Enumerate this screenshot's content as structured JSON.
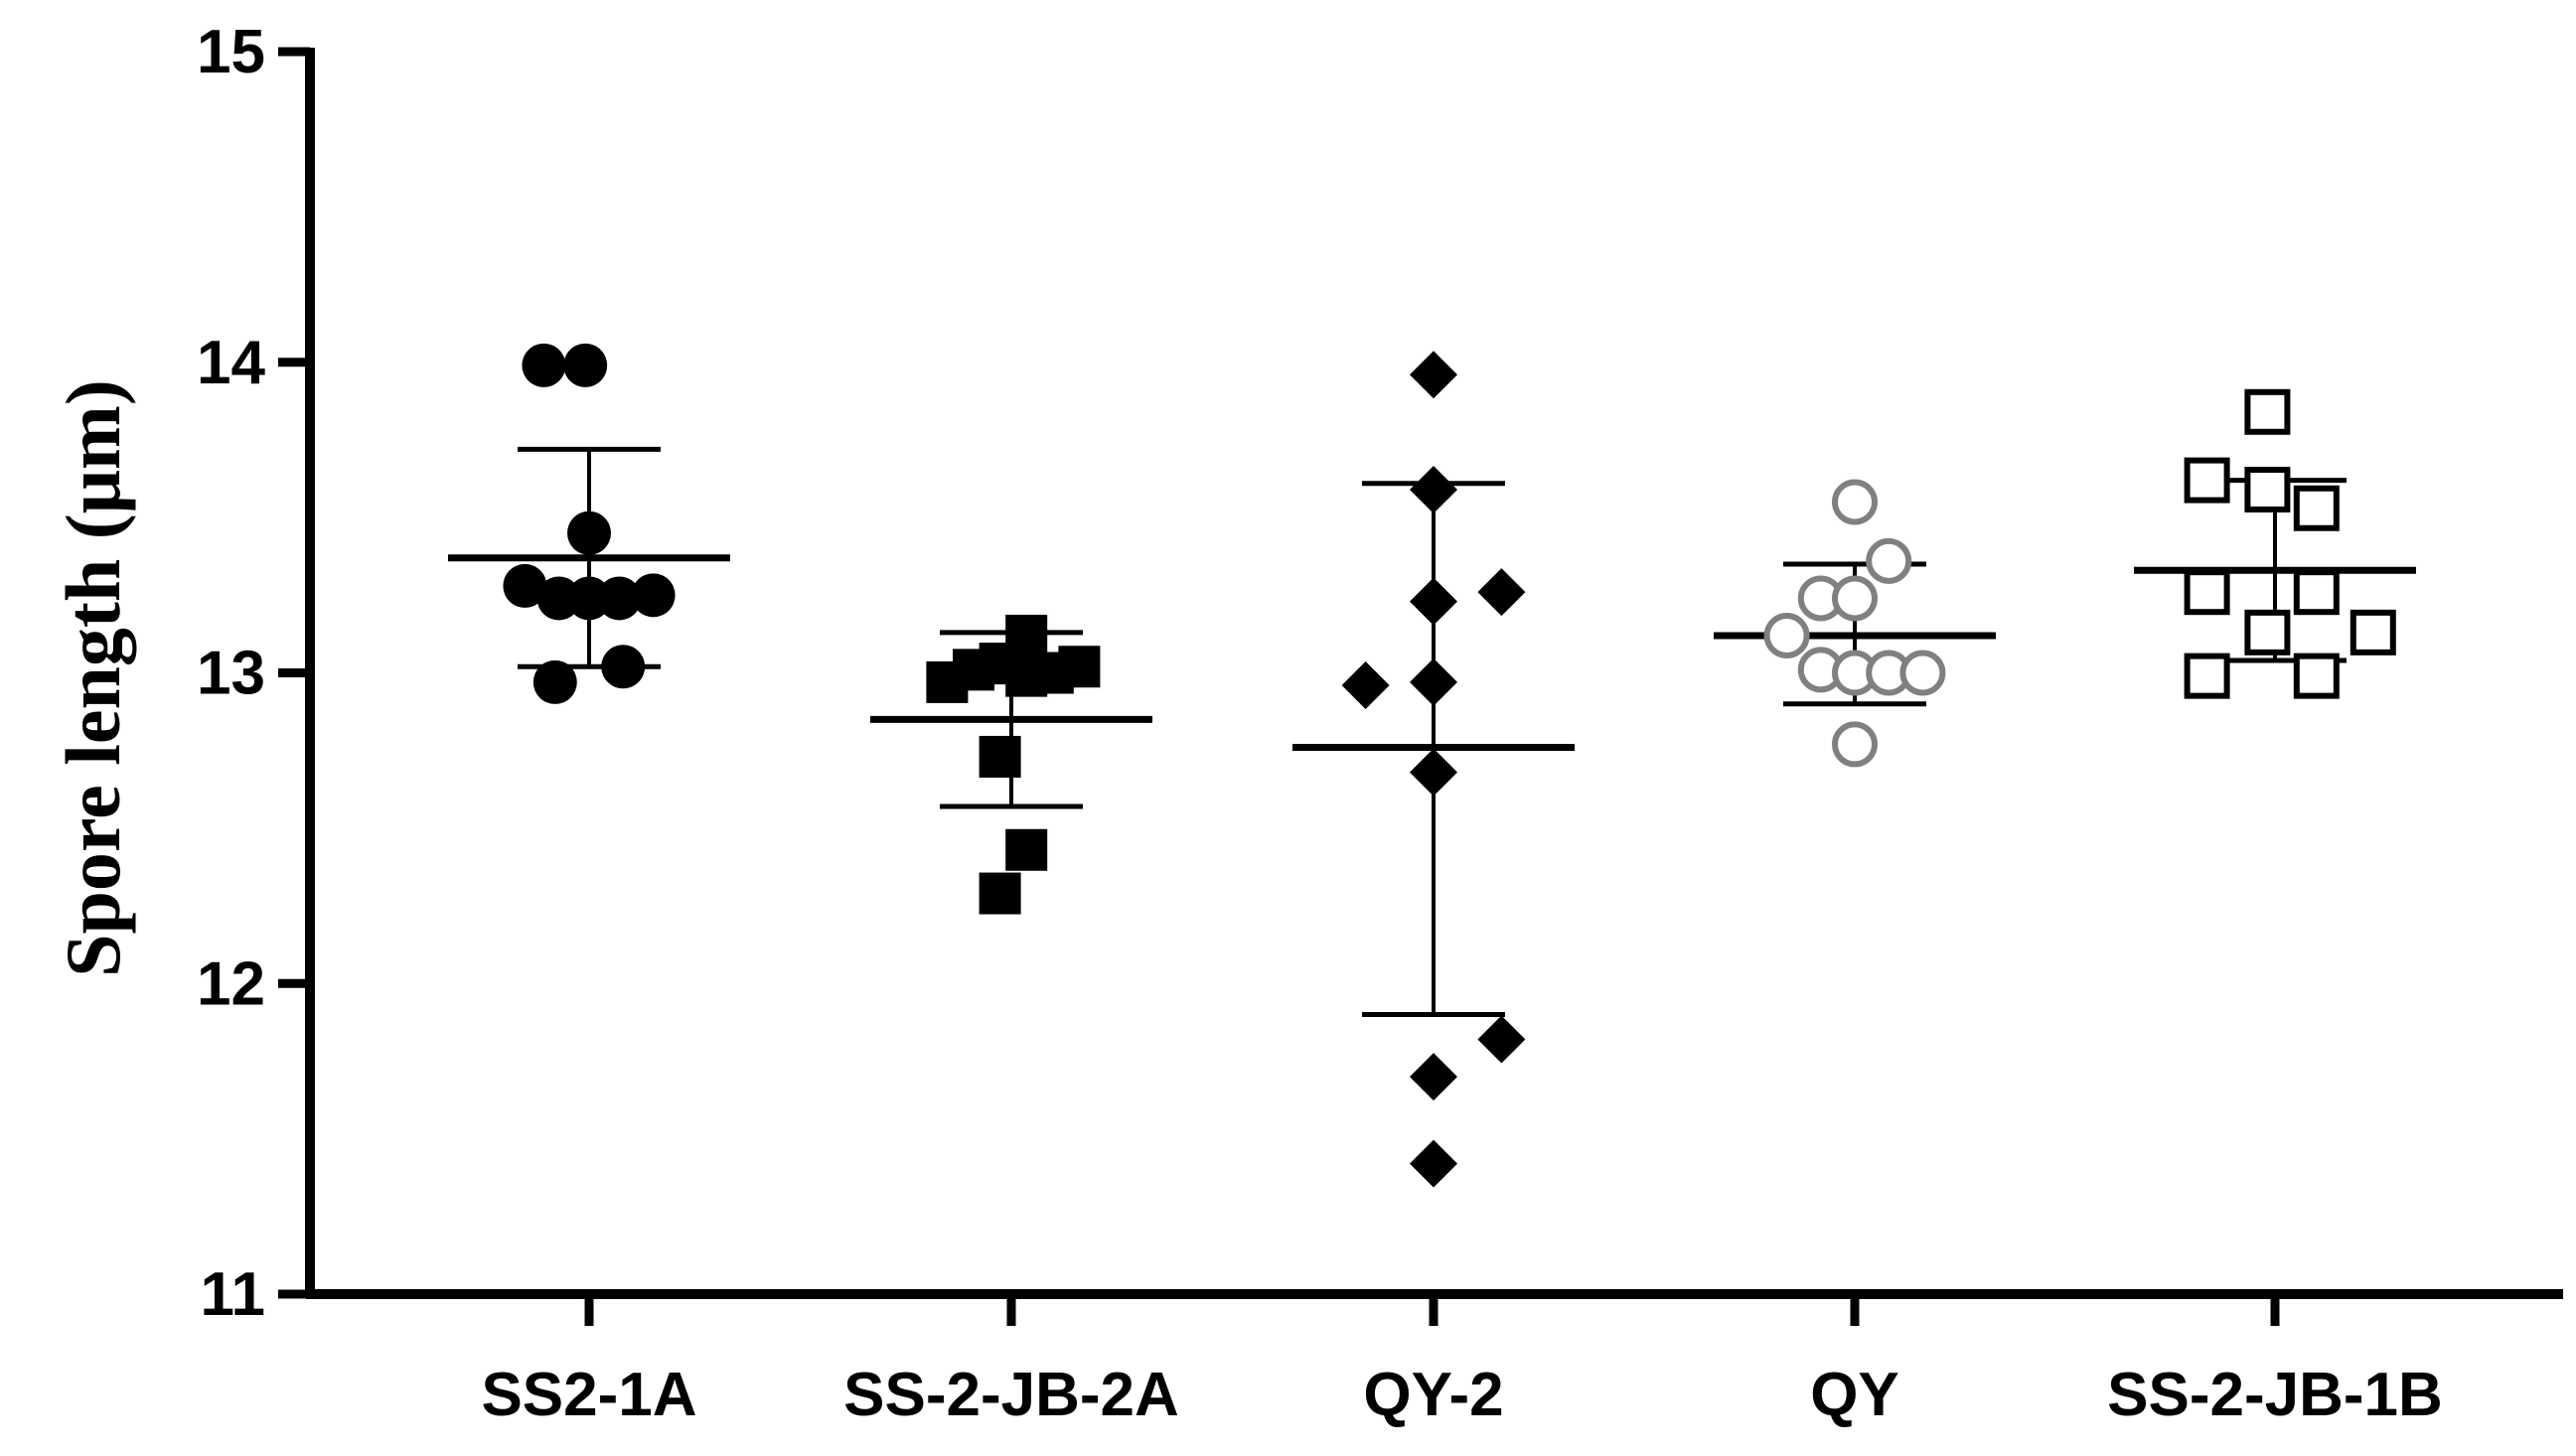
{
  "chart_data": {
    "type": "scatter",
    "title": "",
    "xlabel": "",
    "ylabel": "Spore length (μm)",
    "ylim": [
      11,
      15
    ],
    "yticks": [
      "11",
      "12",
      "13",
      "14",
      "15"
    ],
    "grid": false,
    "legend": "none",
    "categories": [
      "SS2-1A",
      "SS-2-JB-2A",
      "QY-2",
      "QY",
      "SS-2-JB-1B"
    ],
    "series": [
      {
        "category": "SS2-1A",
        "marker": "circle-filled",
        "color": "#000000",
        "mean": 13.37,
        "sd_upper": 13.72,
        "sd_lower": 13.02,
        "points": [
          {
            "offset": -0.6,
            "y": 13.99
          },
          {
            "offset": -0.05,
            "y": 13.99
          },
          {
            "offset": 0.0,
            "y": 13.45
          },
          {
            "offset": -0.85,
            "y": 13.28
          },
          {
            "offset": -0.4,
            "y": 13.24
          },
          {
            "offset": 0.0,
            "y": 13.24
          },
          {
            "offset": 0.4,
            "y": 13.24
          },
          {
            "offset": 0.85,
            "y": 13.25
          },
          {
            "offset": -0.45,
            "y": 12.97
          },
          {
            "offset": 0.45,
            "y": 13.02
          }
        ]
      },
      {
        "category": "SS-2-JB-2A",
        "marker": "square-filled",
        "color": "#000000",
        "mean": 12.85,
        "sd_upper": 13.13,
        "sd_lower": 12.57,
        "points": [
          {
            "offset": 0.2,
            "y": 13.12
          },
          {
            "offset": -0.85,
            "y": 12.97
          },
          {
            "offset": -0.5,
            "y": 13.01
          },
          {
            "offset": -0.15,
            "y": 13.03
          },
          {
            "offset": 0.2,
            "y": 12.99
          },
          {
            "offset": 0.55,
            "y": 13.0
          },
          {
            "offset": 0.9,
            "y": 13.02
          },
          {
            "offset": -0.15,
            "y": 12.73
          },
          {
            "offset": 0.2,
            "y": 12.43
          },
          {
            "offset": -0.15,
            "y": 12.29
          }
        ]
      },
      {
        "category": "QY-2",
        "marker": "diamond-filled",
        "color": "#000000",
        "mean": 12.76,
        "sd_upper": 13.61,
        "sd_lower": 11.9,
        "points": [
          {
            "offset": 0.0,
            "y": 13.96
          },
          {
            "offset": 0.0,
            "y": 13.59
          },
          {
            "offset": 0.0,
            "y": 13.23
          },
          {
            "offset": 0.9,
            "y": 13.26
          },
          {
            "offset": -0.9,
            "y": 12.96
          },
          {
            "offset": 0.0,
            "y": 12.97
          },
          {
            "offset": 0.0,
            "y": 12.68
          },
          {
            "offset": 0.9,
            "y": 11.82
          },
          {
            "offset": 0.0,
            "y": 11.7
          },
          {
            "offset": 0.0,
            "y": 11.42
          }
        ]
      },
      {
        "category": "QY",
        "marker": "circle-open",
        "color": "#808080",
        "mean": 13.12,
        "sd_upper": 13.35,
        "sd_lower": 12.9,
        "points": [
          {
            "offset": 0.0,
            "y": 13.55
          },
          {
            "offset": 0.45,
            "y": 13.36
          },
          {
            "offset": -0.45,
            "y": 13.24
          },
          {
            "offset": 0.0,
            "y": 13.24
          },
          {
            "offset": -0.9,
            "y": 13.12
          },
          {
            "offset": -0.45,
            "y": 13.01
          },
          {
            "offset": 0.0,
            "y": 13.0
          },
          {
            "offset": 0.45,
            "y": 13.0
          },
          {
            "offset": 0.9,
            "y": 13.0
          },
          {
            "offset": 0.0,
            "y": 12.77
          }
        ]
      },
      {
        "category": "SS-2-JB-1B",
        "marker": "square-open",
        "color": "#000000",
        "mean": 13.33,
        "sd_upper": 13.62,
        "sd_lower": 13.04,
        "points": [
          {
            "offset": -0.1,
            "y": 13.84
          },
          {
            "offset": -0.9,
            "y": 13.62
          },
          {
            "offset": -0.1,
            "y": 13.59
          },
          {
            "offset": 0.55,
            "y": 13.53
          },
          {
            "offset": -0.9,
            "y": 13.26
          },
          {
            "offset": 0.55,
            "y": 13.26
          },
          {
            "offset": -0.1,
            "y": 13.13
          },
          {
            "offset": 1.3,
            "y": 13.13
          },
          {
            "offset": -0.9,
            "y": 12.99
          },
          {
            "offset": 0.55,
            "y": 12.99
          }
        ]
      }
    ]
  }
}
